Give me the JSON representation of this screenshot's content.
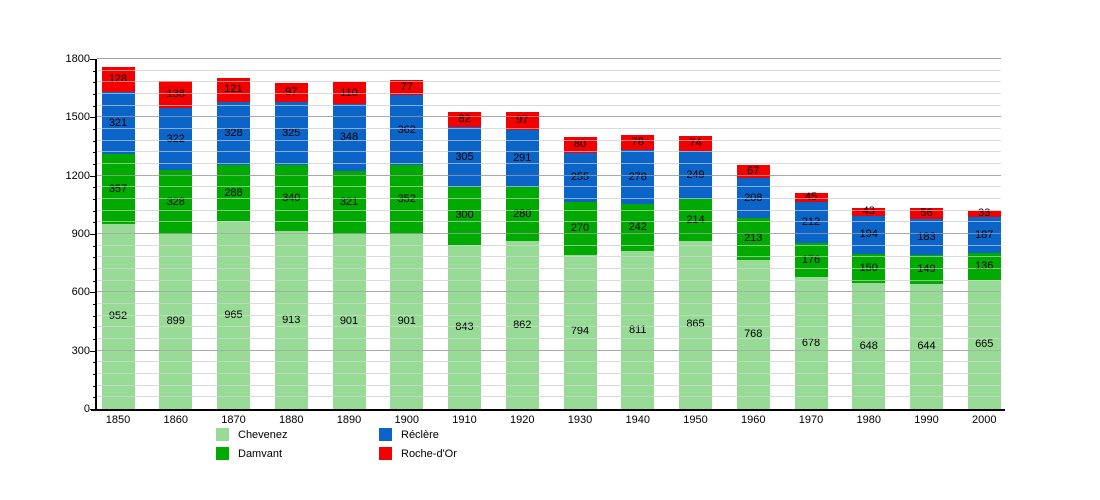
{
  "chart_data": {
    "type": "bar",
    "stacked": true,
    "title": "",
    "xlabel": "",
    "ylabel": "",
    "grid": "on",
    "legend_position": "bottom",
    "ylim": [
      0,
      1800
    ],
    "ytick_step": 300,
    "minor_grid_step": 60,
    "yticks": [
      "0",
      "300",
      "600",
      "900",
      "1200",
      "1500",
      "1800"
    ],
    "categories": [
      "1850",
      "1860",
      "1870",
      "1880",
      "1890",
      "1900",
      "1910",
      "1920",
      "1930",
      "1940",
      "1950",
      "1960",
      "1970",
      "1980",
      "1990",
      "2000"
    ],
    "series": [
      {
        "name": "Chevenez",
        "color": "#97db97",
        "values": [
          952,
          899,
          965,
          913,
          901,
          901,
          843,
          862,
          794,
          811,
          865,
          768,
          678,
          648,
          644,
          665
        ]
      },
      {
        "name": "Damvant",
        "color": "#00aa00",
        "values": [
          357,
          328,
          288,
          340,
          321,
          352,
          300,
          280,
          270,
          242,
          214,
          213,
          176,
          150,
          149,
          136
        ]
      },
      {
        "name": "Réclère",
        "color": "#0b64c8",
        "values": [
          321,
          322,
          328,
          325,
          348,
          362,
          305,
          291,
          255,
          278,
          249,
          208,
          212,
          194,
          183,
          187
        ]
      },
      {
        "name": "Roche-d'Or",
        "color": "#f40000",
        "values": [
          128,
          138,
          121,
          97,
          110,
          77,
          82,
          97,
          80,
          78,
          74,
          67,
          45,
          43,
          56,
          33
        ]
      }
    ]
  },
  "legend": {
    "items": [
      {
        "label": "Chevenez",
        "color": "#97db97"
      },
      {
        "label": "Damvant",
        "color": "#00aa00"
      },
      {
        "label": "Réclère",
        "color": "#0b64c8"
      },
      {
        "label": "Roche-d'Or",
        "color": "#f40000"
      }
    ]
  },
  "colors": {
    "grid_minor": "#dcdcdc",
    "grid_major": "#b3b3b3",
    "axis": "#000000",
    "background": "#ffffff"
  }
}
